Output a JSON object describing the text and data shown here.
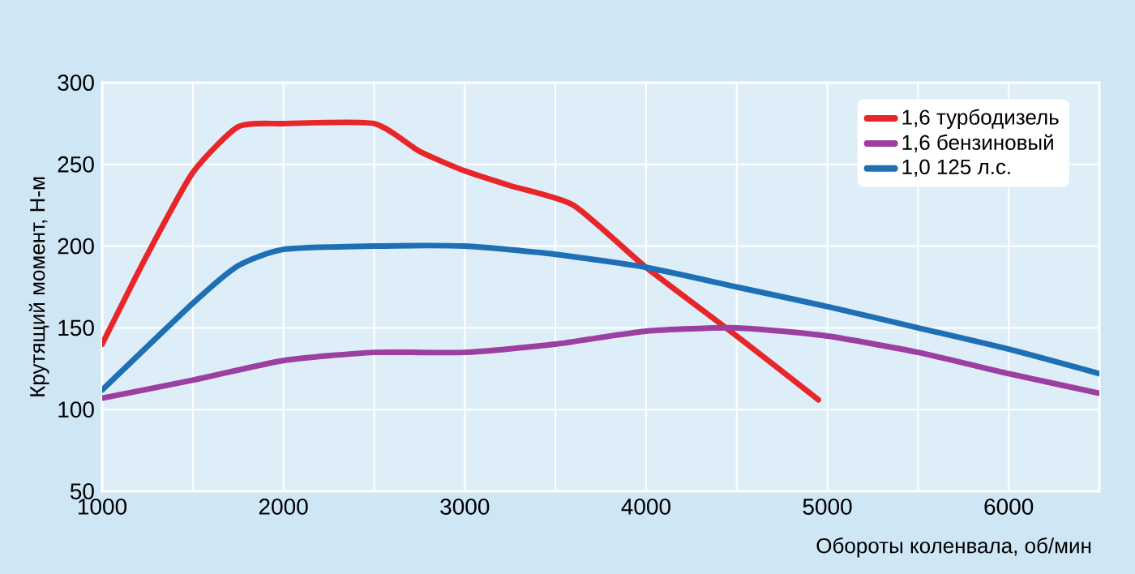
{
  "chart_data": {
    "type": "line",
    "xlabel": "Обороты коленвала, об/мин",
    "ylabel": "Крутящий момент, Н-м",
    "xlim": [
      1000,
      6500
    ],
    "ylim": [
      50,
      300
    ],
    "xticks": [
      1000,
      {
        "value": 1500,
        "label": null
      },
      2000,
      {
        "value": 2500,
        "label": null
      },
      3000,
      {
        "value": 3500,
        "label": null
      },
      4000,
      {
        "value": 4500,
        "label": null
      },
      5000,
      {
        "value": 5500,
        "label": null
      },
      6000
    ],
    "yticks": [
      50,
      100,
      150,
      200,
      250,
      300
    ],
    "grid": true,
    "legend": "top right",
    "marker": "none",
    "line_style": "solid",
    "series": [
      {
        "name": "1,6 турбодизель",
        "color": "#e8262a",
        "x": [
          1000,
          1250,
          1500,
          1750,
          2000,
          2500,
          2750,
          3000,
          3250,
          3600,
          4000,
          4500,
          4950
        ],
        "values": [
          140,
          195,
          245,
          273,
          275,
          275,
          258,
          246,
          237,
          225,
          187,
          145,
          106
        ]
      },
      {
        "name": "1,6 бензиновый",
        "color": "#9b3fa0",
        "x": [
          1000,
          1500,
          2000,
          2500,
          3000,
          3500,
          4000,
          4500,
          5000,
          5500,
          6000,
          6500
        ],
        "values": [
          107,
          118,
          130,
          135,
          135,
          140,
          148,
          150,
          145,
          135,
          122,
          110
        ]
      },
      {
        "name": "1,0 125 л.с.",
        "color": "#1f6fb5",
        "x": [
          1000,
          1500,
          1750,
          2000,
          2500,
          3000,
          3500,
          4000,
          4500,
          5000,
          5500,
          6000,
          6500
        ],
        "values": [
          112,
          165,
          188,
          198,
          200,
          200,
          195,
          187,
          175,
          163,
          150,
          137,
          122
        ]
      }
    ]
  }
}
